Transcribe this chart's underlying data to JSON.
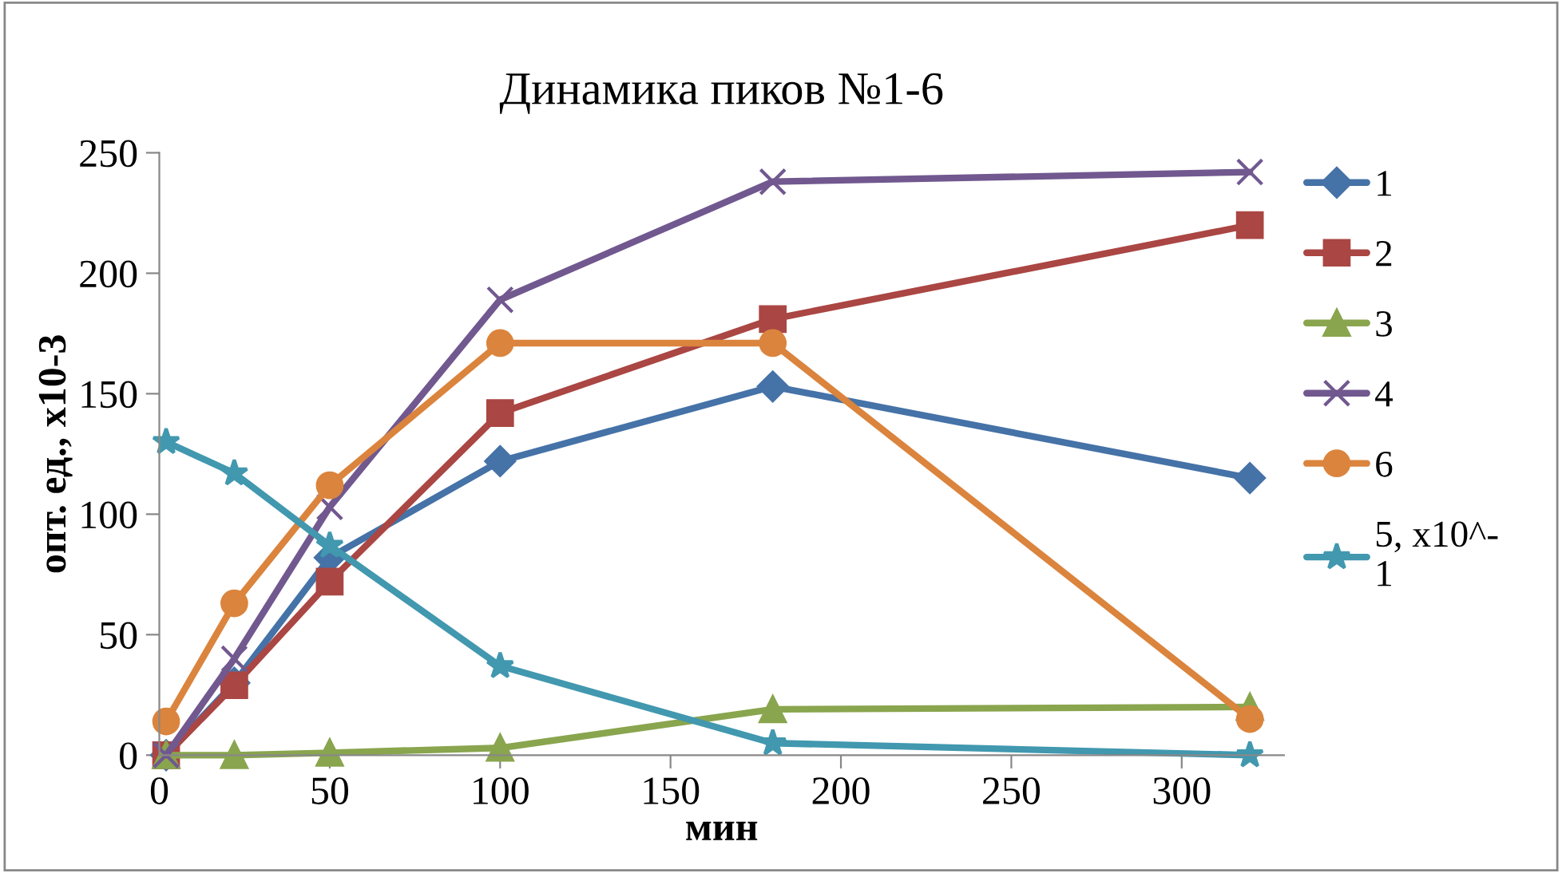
{
  "chart_data": {
    "type": "line",
    "title": "Динамика пиков №1-6",
    "xlabel": "мин",
    "ylabel": "опт. ед., x10-3",
    "x": [
      2,
      22,
      50,
      100,
      180,
      320
    ],
    "xlim": [
      0,
      330
    ],
    "xticks": [
      0,
      50,
      100,
      150,
      200,
      250,
      300
    ],
    "ylim": [
      0,
      250
    ],
    "yticks": [
      0,
      50,
      100,
      150,
      200,
      250
    ],
    "grid": false,
    "legend": "right",
    "series": [
      {
        "name": "1",
        "color": "#4572a7",
        "marker": "diamond",
        "values": [
          0,
          30,
          82,
          122,
          153,
          115
        ]
      },
      {
        "name": "2",
        "color": "#aa4643",
        "marker": "square",
        "values": [
          0,
          29,
          72,
          142,
          181,
          220
        ]
      },
      {
        "name": "3",
        "color": "#89a54e",
        "marker": "triangle",
        "values": [
          0,
          0,
          1,
          3,
          19,
          20
        ]
      },
      {
        "name": "4",
        "color": "#71588f",
        "marker": "cross",
        "values": [
          0,
          40,
          103,
          189,
          238,
          242
        ]
      },
      {
        "name": "6",
        "color": "#db843d",
        "marker": "circle",
        "values": [
          14,
          63,
          112,
          171,
          171,
          15
        ]
      },
      {
        "name": "5, x10^-\n1",
        "color": "#4198af",
        "marker": "star",
        "values": [
          130,
          117,
          87,
          37,
          5,
          0
        ]
      }
    ]
  }
}
